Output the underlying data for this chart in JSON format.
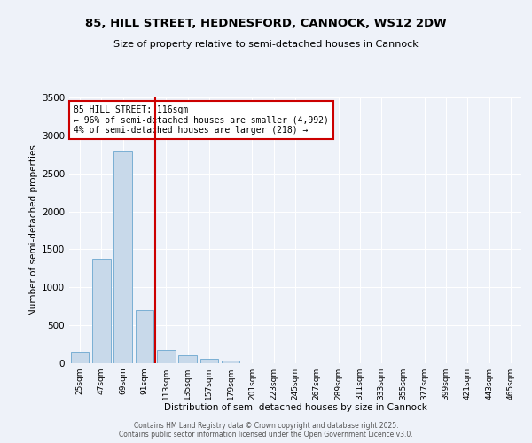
{
  "title_line1": "85, HILL STREET, HEDNESFORD, CANNOCK, WS12 2DW",
  "title_line2": "Size of property relative to semi-detached houses in Cannock",
  "xlabel": "Distribution of semi-detached houses by size in Cannock",
  "ylabel": "Number of semi-detached properties",
  "categories": [
    "25sqm",
    "47sqm",
    "69sqm",
    "91sqm",
    "113sqm",
    "135sqm",
    "157sqm",
    "179sqm",
    "201sqm",
    "223sqm",
    "245sqm",
    "267sqm",
    "289sqm",
    "311sqm",
    "333sqm",
    "355sqm",
    "377sqm",
    "399sqm",
    "421sqm",
    "443sqm",
    "465sqm"
  ],
  "values": [
    150,
    1380,
    2800,
    700,
    175,
    110,
    60,
    30,
    5,
    0,
    0,
    0,
    0,
    0,
    0,
    0,
    0,
    0,
    0,
    0,
    0
  ],
  "bar_color": "#c8d9ea",
  "bar_edge_color": "#7aafd4",
  "vline_pos": 3.5,
  "vline_color": "#cc0000",
  "annotation_line1": "85 HILL STREET: 116sqm",
  "annotation_line2": "← 96% of semi-detached houses are smaller (4,992)",
  "annotation_line3": "4% of semi-detached houses are larger (218) →",
  "annotation_box_color": "#cc0000",
  "ylim": [
    0,
    3500
  ],
  "yticks": [
    0,
    500,
    1000,
    1500,
    2000,
    2500,
    3000,
    3500
  ],
  "background_color": "#eef2f9",
  "grid_color": "#ffffff",
  "footer_line1": "Contains HM Land Registry data © Crown copyright and database right 2025.",
  "footer_line2": "Contains public sector information licensed under the Open Government Licence v3.0."
}
